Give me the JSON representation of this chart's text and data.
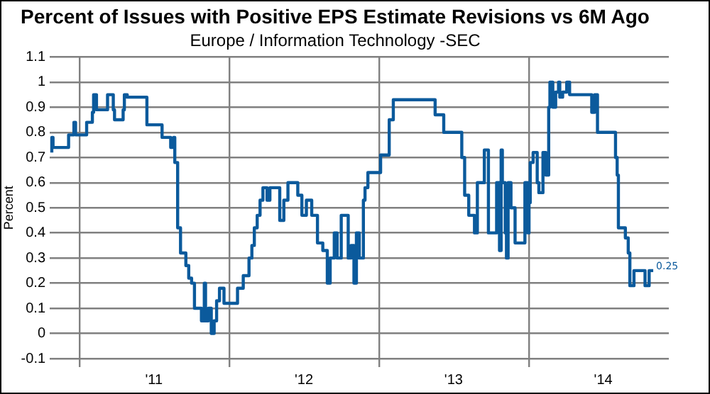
{
  "chart_data": {
    "type": "step",
    "title": "Percent of Issues with Positive EPS Estimate Revisions vs 6M Ago",
    "subtitle": "Europe / Information Technology -SEC",
    "ylabel": "Percent",
    "xlim": [
      "2010-10-20",
      "2014-12-08"
    ],
    "xticks": [
      {
        "value": "2011-01-01",
        "label": null
      },
      {
        "value": "2011-07-01",
        "label": "'11"
      },
      {
        "value": "2012-01-01",
        "label": null
      },
      {
        "value": "2012-07-01",
        "label": "'12"
      },
      {
        "value": "2013-01-01",
        "label": null
      },
      {
        "value": "2013-07-01",
        "label": "'13"
      },
      {
        "value": "2014-01-01",
        "label": null
      },
      {
        "value": "2014-07-01",
        "label": "'14"
      }
    ],
    "ylim": [
      -0.1,
      1.1
    ],
    "yticks": [
      -0.1,
      0,
      0.1,
      0.2,
      0.3,
      0.4,
      0.5,
      0.6,
      0.7,
      0.8,
      0.9,
      1,
      1.1
    ],
    "grid": true,
    "legend": false,
    "marker": "none",
    "line_style": "solid",
    "annotations": [
      {
        "text": "0.25",
        "x": "2014-10-31",
        "y": 0.25
      }
    ],
    "series": [
      {
        "color": "#0b5a9c",
        "x": [
          "2010-10-25",
          "2010-10-28",
          "2010-12-05",
          "2010-12-18",
          "2010-12-22",
          "2011-01-18",
          "2011-02-01",
          "2011-02-04",
          "2011-02-11",
          "2011-03-10",
          "2011-03-24",
          "2011-03-27",
          "2011-04-17",
          "2011-04-20",
          "2011-04-27",
          "2011-06-14",
          "2011-07-21",
          "2011-08-11",
          "2011-08-18",
          "2011-08-21",
          "2011-08-28",
          "2011-09-04",
          "2011-09-17",
          "2011-09-24",
          "2011-10-01",
          "2011-10-08",
          "2011-10-25",
          "2011-11-01",
          "2011-11-04",
          "2011-11-11",
          "2011-11-18",
          "2011-11-25",
          "2011-12-01",
          "2011-12-08",
          "2011-12-19",
          "2012-01-21",
          "2012-02-04",
          "2012-02-18",
          "2012-02-25",
          "2012-03-02",
          "2012-03-09",
          "2012-03-16",
          "2012-03-23",
          "2012-04-02",
          "2012-04-09",
          "2012-05-03",
          "2012-05-13",
          "2012-05-23",
          "2012-06-16",
          "2012-06-26",
          "2012-07-07",
          "2012-07-20",
          "2012-08-03",
          "2012-08-16",
          "2012-08-27",
          "2012-09-03",
          "2012-09-13",
          "2012-09-20",
          "2012-09-30",
          "2012-10-17",
          "2012-10-24",
          "2012-10-31",
          "2012-11-06",
          "2012-11-13",
          "2012-11-23",
          "2012-11-27",
          "2012-12-04",
          "2013-01-04",
          "2013-01-25",
          "2013-02-04",
          "2013-05-17",
          "2013-06-07",
          "2013-07-21",
          "2013-07-28",
          "2013-08-07",
          "2013-08-21",
          "2013-08-28",
          "2013-09-14",
          "2013-09-24",
          "2013-10-14",
          "2013-10-21",
          "2013-10-25",
          "2013-10-28",
          "2013-11-04",
          "2013-11-07",
          "2013-11-11",
          "2013-11-18",
          "2013-11-28",
          "2013-12-22",
          "2013-12-29",
          "2014-01-01",
          "2014-01-04",
          "2014-01-11",
          "2014-01-21",
          "2014-01-25",
          "2014-02-04",
          "2014-02-11",
          "2014-02-18",
          "2014-02-21",
          "2014-02-28",
          "2014-03-07",
          "2014-03-14",
          "2014-03-17",
          "2014-03-24",
          "2014-04-03",
          "2014-04-10",
          "2014-06-03",
          "2014-06-10",
          "2014-06-17",
          "2014-07-31",
          "2014-08-04",
          "2014-08-07",
          "2014-08-24",
          "2014-08-31",
          "2014-09-04",
          "2014-09-14",
          "2014-10-11",
          "2014-10-21",
          "2014-10-25",
          "2014-10-31"
        ],
        "values": [
          0.72,
          0.78,
          0.74,
          0.79,
          0.84,
          0.79,
          0.84,
          0.88,
          0.95,
          0.89,
          0.95,
          0.89,
          0.85,
          0.89,
          0.95,
          0.94,
          0.83,
          0.78,
          0.74,
          0.78,
          0.68,
          0.42,
          0.32,
          0.27,
          0.22,
          0.2,
          0.1,
          0.05,
          0.2,
          0.05,
          0.1,
          0,
          0.05,
          0.13,
          0.18,
          0.12,
          0.18,
          0.23,
          0.3,
          0.35,
          0.42,
          0.47,
          0.53,
          0.58,
          0.53,
          0.58,
          0.45,
          0.53,
          0.6,
          0.55,
          0.47,
          0.53,
          0.47,
          0.36,
          0.33,
          0.2,
          0.3,
          0.4,
          0.3,
          0.47,
          0.3,
          0.35,
          0.2,
          0.4,
          0.3,
          0.53,
          0.58,
          0.64,
          0.71,
          0.85,
          0.93,
          0.87,
          0.8,
          0.7,
          0.55,
          0.47,
          0.4,
          0.6,
          0.73,
          0.4,
          0.6,
          0.33,
          0.73,
          0.6,
          0.4,
          0.3,
          0.6,
          0.5,
          0.36,
          0.6,
          0.4,
          0.52,
          0.68,
          0.72,
          0.6,
          0.56,
          0.72,
          0.63,
          0.9,
          1,
          0.9,
          0.96,
          1,
          0.94,
          0.96,
          1,
          0.95,
          0.88,
          0.95,
          0.8,
          0.7,
          0.63,
          0.42,
          0.38,
          0.32,
          0.19,
          0.25,
          0.19,
          0.25,
          0.25
        ]
      }
    ]
  }
}
